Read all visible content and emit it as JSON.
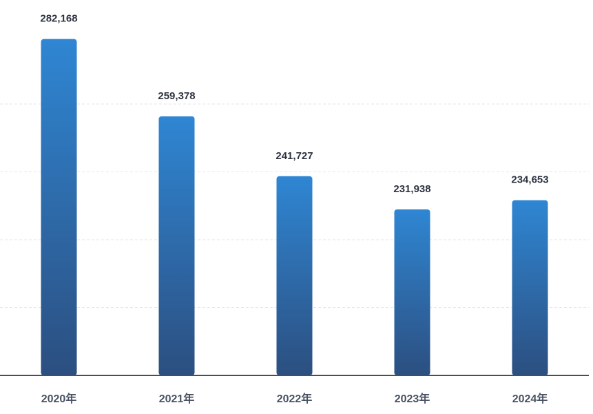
{
  "chart_data": {
    "type": "bar",
    "categories": [
      "2020年",
      "2021年",
      "2022年",
      "2023年",
      "2024年"
    ],
    "values": [
      282168,
      259378,
      241727,
      231938,
      234653
    ],
    "value_labels": [
      "282,168",
      "259,378",
      "241,727",
      "231,938",
      "234,653"
    ],
    "color": [
      "#2f86d3",
      "#2c4f80"
    ],
    "ylim": [
      183000,
      289000
    ],
    "yticks": [
      203000,
      223000,
      243000,
      263000
    ],
    "grid": true
  }
}
